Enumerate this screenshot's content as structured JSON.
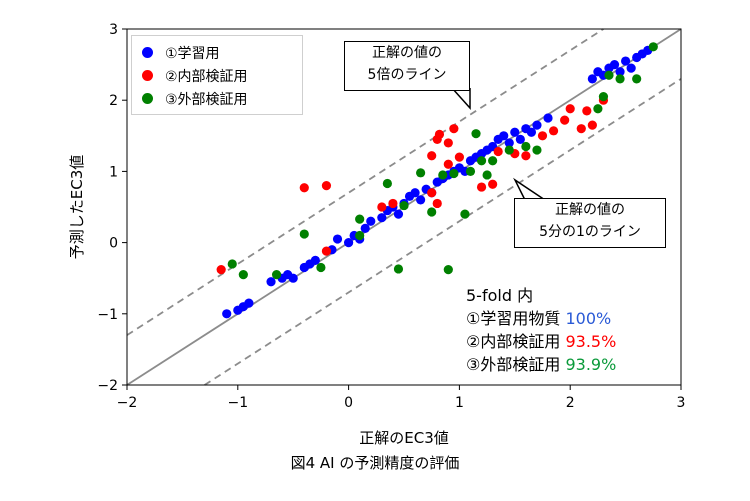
{
  "chart_data": {
    "type": "scatter",
    "title": "",
    "xlabel": "正解のEC3値",
    "ylabel": "予測したEC3値",
    "xlim": [
      -2,
      3
    ],
    "ylim": [
      -2,
      3
    ],
    "x_ticks": [
      "−2",
      "−1",
      "0",
      "1",
      "2",
      "3"
    ],
    "y_ticks": [
      "−2",
      "−1",
      "0",
      "1",
      "2",
      "3"
    ],
    "grid": false,
    "legend_position": "top-left",
    "reference_lines": [
      {
        "label": "y = x",
        "offset": 0,
        "style": "solid",
        "color": "#8c8c8c"
      },
      {
        "label": "5倍",
        "offset": 0.7,
        "style": "dashed",
        "color": "#8c8c8c"
      },
      {
        "label": "1/5",
        "offset": -0.7,
        "style": "dashed",
        "color": "#8c8c8c"
      }
    ],
    "series": [
      {
        "name": "①学習用",
        "color": "#0000ff",
        "points": [
          [
            -1.1,
            -1.0
          ],
          [
            -1.0,
            -0.95
          ],
          [
            -0.95,
            -0.9
          ],
          [
            -0.9,
            -0.85
          ],
          [
            -0.7,
            -0.55
          ],
          [
            -0.6,
            -0.5
          ],
          [
            -0.55,
            -0.45
          ],
          [
            -0.5,
            -0.5
          ],
          [
            -0.4,
            -0.35
          ],
          [
            -0.35,
            -0.3
          ],
          [
            -0.3,
            -0.25
          ],
          [
            -0.15,
            -0.1
          ],
          [
            -0.1,
            0.05
          ],
          [
            0.0,
            0.0
          ],
          [
            0.05,
            0.1
          ],
          [
            0.1,
            0.05
          ],
          [
            0.15,
            0.2
          ],
          [
            0.2,
            0.3
          ],
          [
            0.3,
            0.35
          ],
          [
            0.35,
            0.45
          ],
          [
            0.4,
            0.5
          ],
          [
            0.45,
            0.4
          ],
          [
            0.5,
            0.55
          ],
          [
            0.55,
            0.65
          ],
          [
            0.6,
            0.7
          ],
          [
            0.65,
            0.6
          ],
          [
            0.7,
            0.75
          ],
          [
            0.75,
            0.7
          ],
          [
            0.8,
            0.85
          ],
          [
            0.85,
            0.9
          ],
          [
            0.9,
            0.95
          ],
          [
            0.95,
            1.0
          ],
          [
            1.0,
            1.05
          ],
          [
            1.05,
            1.0
          ],
          [
            1.1,
            1.15
          ],
          [
            1.15,
            1.2
          ],
          [
            1.2,
            1.25
          ],
          [
            1.25,
            1.3
          ],
          [
            1.3,
            1.35
          ],
          [
            1.35,
            1.45
          ],
          [
            1.4,
            1.5
          ],
          [
            1.45,
            1.4
          ],
          [
            1.5,
            1.55
          ],
          [
            1.55,
            1.45
          ],
          [
            1.6,
            1.6
          ],
          [
            1.65,
            1.55
          ],
          [
            1.7,
            1.65
          ],
          [
            1.8,
            1.75
          ],
          [
            2.2,
            2.3
          ],
          [
            2.25,
            2.4
          ],
          [
            2.3,
            2.35
          ],
          [
            2.35,
            2.45
          ],
          [
            2.4,
            2.5
          ],
          [
            2.45,
            2.4
          ],
          [
            2.5,
            2.55
          ],
          [
            2.55,
            2.45
          ],
          [
            2.6,
            2.6
          ],
          [
            2.65,
            2.65
          ],
          [
            2.7,
            2.7
          ]
        ]
      },
      {
        "name": "②内部検証用",
        "color": "#ff0000",
        "points": [
          [
            -1.15,
            -0.38
          ],
          [
            -0.4,
            0.77
          ],
          [
            -0.2,
            -0.12
          ],
          [
            -0.2,
            0.8
          ],
          [
            0.3,
            0.5
          ],
          [
            0.4,
            0.55
          ],
          [
            0.75,
            1.22
          ],
          [
            0.8,
            1.45
          ],
          [
            0.82,
            1.52
          ],
          [
            0.9,
            1.4
          ],
          [
            0.95,
            1.6
          ],
          [
            0.75,
            0.7
          ],
          [
            0.8,
            0.55
          ],
          [
            0.9,
            1.1
          ],
          [
            1.0,
            1.2
          ],
          [
            1.2,
            0.78
          ],
          [
            1.3,
            0.82
          ],
          [
            1.35,
            1.28
          ],
          [
            1.5,
            1.25
          ],
          [
            1.6,
            1.22
          ],
          [
            1.75,
            1.5
          ],
          [
            1.85,
            1.57
          ],
          [
            1.95,
            1.72
          ],
          [
            2.0,
            1.88
          ],
          [
            2.1,
            1.6
          ],
          [
            2.15,
            1.85
          ],
          [
            2.2,
            1.65
          ],
          [
            2.3,
            2.0
          ]
        ]
      },
      {
        "name": "③外部検証用",
        "color": "#008000",
        "points": [
          [
            -1.05,
            -0.3
          ],
          [
            -0.95,
            -0.45
          ],
          [
            -0.65,
            -0.45
          ],
          [
            -0.4,
            0.12
          ],
          [
            -0.25,
            -0.35
          ],
          [
            0.1,
            0.1
          ],
          [
            0.1,
            0.33
          ],
          [
            0.35,
            0.83
          ],
          [
            0.45,
            -0.37
          ],
          [
            0.5,
            0.52
          ],
          [
            0.65,
            0.98
          ],
          [
            0.75,
            0.43
          ],
          [
            0.85,
            0.95
          ],
          [
            0.9,
            -0.38
          ],
          [
            0.95,
            0.97
          ],
          [
            1.05,
            0.4
          ],
          [
            1.1,
            1.0
          ],
          [
            1.15,
            1.53
          ],
          [
            1.2,
            1.15
          ],
          [
            1.25,
            0.95
          ],
          [
            1.3,
            1.15
          ],
          [
            1.45,
            1.3
          ],
          [
            1.6,
            1.35
          ],
          [
            1.7,
            1.3
          ],
          [
            2.25,
            1.88
          ],
          [
            2.3,
            2.05
          ],
          [
            2.35,
            2.35
          ],
          [
            2.45,
            2.3
          ],
          [
            2.6,
            2.3
          ],
          [
            2.75,
            2.75
          ]
        ]
      }
    ]
  },
  "legend": {
    "items": [
      {
        "label": "①学習用",
        "color": "#0000ff"
      },
      {
        "label": "②内部検証用",
        "color": "#ff0000"
      },
      {
        "label": "③外部検証用",
        "color": "#008000"
      }
    ]
  },
  "callouts": {
    "upper": {
      "line1": "正解の値の",
      "line2": "5倍のライン"
    },
    "lower": {
      "line1": "正解の値の",
      "line2": "5分の1のライン"
    }
  },
  "stats": {
    "title": "5-fold 内",
    "rows": [
      {
        "label": "①学習用物質",
        "value": "100%",
        "color": "#2a5ad6"
      },
      {
        "label": "②内部検証用",
        "value": "93.5%",
        "color": "#ff0000"
      },
      {
        "label": "③外部検証用",
        "value": "93.9%",
        "color": "#0a9a3a"
      }
    ]
  },
  "caption": "図4  AI の予測精度の評価"
}
